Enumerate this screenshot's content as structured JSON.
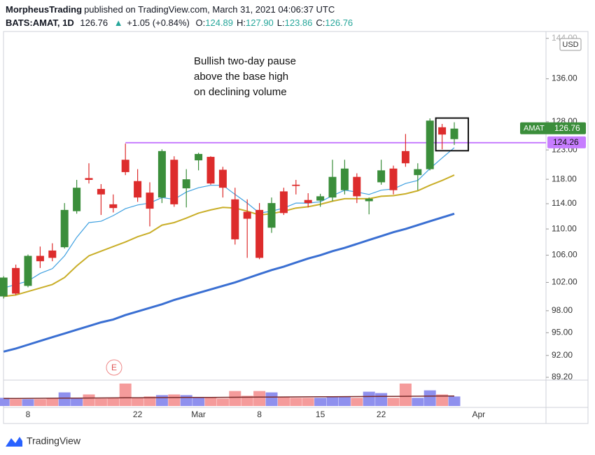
{
  "header": {
    "author": "MorpheusTrading",
    "published": "published on TradingView.com, March 31, 2021 04:06:37 UTC",
    "symbol": "BATS:AMAT, 1D",
    "last": "126.76",
    "arrow": "▲",
    "change": "+1.05 (+0.84%)",
    "ohlc": [
      {
        "label": "O:",
        "value": "124.89"
      },
      {
        "label": "H:",
        "value": "127.90"
      },
      {
        "label": "L:",
        "value": "123.86"
      },
      {
        "label": "C:",
        "value": "126.76"
      }
    ]
  },
  "chart_data": {
    "type": "candlestick",
    "annotation": [
      "Bullish two-day pause",
      "above the base high",
      "on declining volume"
    ],
    "ticker": "AMAT",
    "currency": "USD",
    "earnings_label": "E",
    "level": 124.26,
    "level_color": "#c77dff",
    "categories": [
      null,
      null,
      "8",
      null,
      null,
      null,
      null,
      null,
      null,
      null,
      null,
      "22",
      null,
      null,
      null,
      null,
      "Mar",
      null,
      null,
      null,
      null,
      "8",
      null,
      null,
      null,
      null,
      "15",
      null,
      null,
      null,
      null,
      "22",
      null,
      null,
      null,
      null,
      null,
      null,
      null,
      "Apr"
    ],
    "open": [
      100.0,
      104.1,
      101.5,
      105.9,
      106.7,
      107.2,
      112.8,
      118.2,
      116.4,
      113.9,
      121.3,
      117.7,
      115.8,
      115.0,
      121.3,
      116.5,
      121.2,
      121.8,
      119.6,
      114.7,
      112.7,
      113.0,
      110.2,
      116.0,
      117.1,
      114.6,
      114.5,
      115.0,
      116.2,
      118.4,
      114.4,
      117.5,
      119.8,
      122.8,
      118.7,
      119.7,
      127.0,
      124.89,
      null,
      null
    ],
    "high": [
      102.9,
      104.6,
      106.1,
      107.3,
      107.8,
      114.1,
      117.9,
      120.7,
      117.2,
      115.5,
      124.1,
      119.7,
      117.5,
      123.1,
      121.9,
      119.7,
      122.5,
      121.9,
      120.1,
      116.6,
      114.7,
      114.1,
      115.0,
      116.6,
      117.9,
      115.7,
      115.6,
      121.3,
      121.3,
      119.0,
      115.0,
      121.3,
      120.3,
      125.8,
      120.7,
      128.6,
      127.6,
      127.9,
      null,
      null
    ],
    "low": [
      99.7,
      100.2,
      101.3,
      104.1,
      105.1,
      107.0,
      112.4,
      117.3,
      112.2,
      112.6,
      118.7,
      114.3,
      110.4,
      114.1,
      113.5,
      113.4,
      119.5,
      117.1,
      115.0,
      107.6,
      105.6,
      105.4,
      109.4,
      112.2,
      115.5,
      113.4,
      113.5,
      114.4,
      115.5,
      114.1,
      112.3,
      117.1,
      115.5,
      120.1,
      116.2,
      119.5,
      123.1,
      123.86,
      null,
      null
    ],
    "close": [
      102.7,
      100.4,
      105.9,
      105.1,
      105.6,
      113.0,
      116.6,
      117.9,
      115.5,
      113.3,
      119.2,
      115.0,
      113.2,
      122.8,
      113.9,
      118.0,
      122.3,
      117.3,
      116.6,
      108.4,
      111.6,
      105.6,
      114.1,
      112.5,
      116.9,
      114.1,
      115.2,
      118.4,
      119.8,
      115.2,
      114.8,
      119.5,
      116.2,
      120.7,
      119.7,
      128.2,
      125.7,
      126.76,
      null,
      null
    ],
    "up_color": "#3b8e3b",
    "down_color": "#dd2c2c",
    "series": [
      {
        "color": "#3ea0e0",
        "values": [
          101.2,
          101.7,
          102.2,
          103.3,
          104.0,
          105.9,
          108.7,
          111.0,
          111.2,
          112.1,
          113.2,
          113.8,
          114.1,
          115.0,
          114.7,
          115.9,
          116.6,
          117.0,
          117.0,
          115.5,
          114.1,
          112.5,
          112.8,
          113.3,
          114.1,
          114.1,
          114.3,
          115.3,
          116.2,
          115.9,
          115.5,
          116.2,
          116.4,
          117.3,
          117.8,
          119.8,
          121.6,
          123.4,
          null,
          null
        ]
      },
      {
        "color": "#c9ae28",
        "values": [
          100.0,
          100.2,
          100.7,
          101.2,
          101.7,
          102.7,
          104.4,
          105.9,
          106.6,
          107.3,
          108.0,
          108.8,
          109.4,
          110.6,
          111.0,
          111.7,
          112.5,
          113.0,
          113.4,
          113.3,
          112.8,
          112.2,
          112.4,
          112.8,
          113.3,
          113.5,
          113.9,
          114.4,
          114.8,
          114.8,
          114.8,
          115.2,
          115.3,
          115.6,
          116.1,
          117.0,
          117.8,
          118.7,
          null,
          null
        ]
      },
      {
        "color": "#3a6fd2",
        "values": [
          92.5,
          92.9,
          93.4,
          93.9,
          94.4,
          94.9,
          95.4,
          95.9,
          96.4,
          96.8,
          97.4,
          97.9,
          98.4,
          98.9,
          99.5,
          100.0,
          100.5,
          101.0,
          101.5,
          102.0,
          102.6,
          103.2,
          103.8,
          104.3,
          104.9,
          105.5,
          106.0,
          106.6,
          107.1,
          107.7,
          108.3,
          108.9,
          109.5,
          110.0,
          110.6,
          111.2,
          111.8,
          112.4,
          null,
          null
        ]
      }
    ],
    "ylim": [
      88.85,
      145.4
    ],
    "log_scale": true,
    "grid": false,
    "yticks": [
      {
        "value": 144,
        "label": "144.00"
      },
      {
        "value": 136,
        "label": "136.00"
      },
      {
        "value": 128,
        "label": "128.00"
      },
      {
        "value": 123,
        "label": "123.00"
      },
      {
        "value": 118,
        "label": "118.00"
      },
      {
        "value": 114,
        "label": "114.00"
      },
      {
        "value": 110,
        "label": "110.00"
      },
      {
        "value": 106,
        "label": "106.00"
      },
      {
        "value": 102,
        "label": "102.00"
      },
      {
        "value": 98,
        "label": "98.00"
      },
      {
        "value": 95,
        "label": "95.00"
      },
      {
        "value": 92,
        "label": "92.00"
      },
      {
        "value": 89.2,
        "label": "89.20"
      }
    ],
    "volume": {
      "up_color": "#8f90ee",
      "down_color": "#f59b9b",
      "ma_color": "#7a2b2b",
      "vlim": [
        0,
        36
      ],
      "values": [
        12,
        10,
        10,
        10,
        11,
        20,
        12,
        17,
        11,
        12,
        33,
        12,
        14,
        16,
        17,
        16,
        12,
        13,
        11,
        22,
        15,
        22,
        20,
        13,
        12,
        12,
        12,
        14,
        14,
        12,
        21,
        19,
        12,
        33,
        12,
        23,
        17,
        14,
        null,
        null
      ],
      "ma": [
        11.0,
        11.1,
        11.2,
        11.3,
        11.4,
        11.5,
        11.6,
        11.7,
        11.8,
        11.9,
        12.0,
        12.1,
        12.2,
        12.3,
        12.4,
        12.5,
        12.6,
        12.7,
        12.8,
        12.9,
        13.0,
        13.1,
        13.2,
        13.3,
        13.4,
        13.5,
        13.6,
        13.7,
        13.8,
        13.9,
        14.0,
        14.1,
        14.2,
        14.3,
        14.4,
        14.5,
        14.6,
        14.7,
        null,
        null
      ]
    }
  },
  "footer": {
    "brand": "TradingView"
  }
}
